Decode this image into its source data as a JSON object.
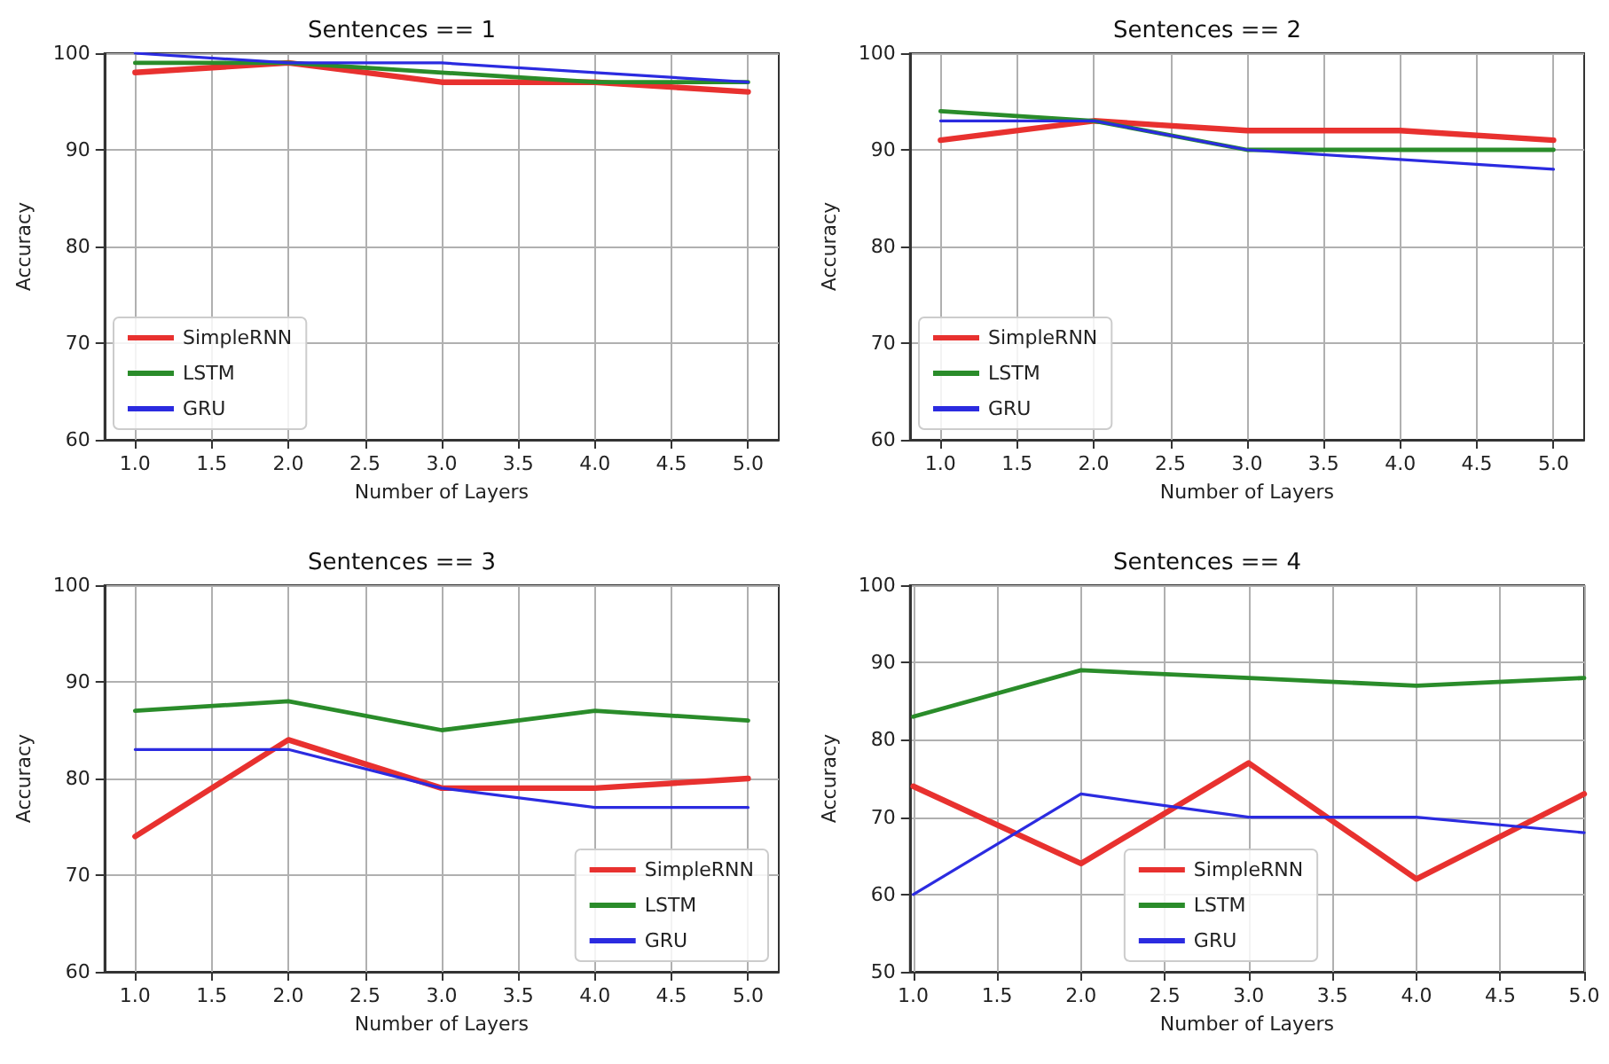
{
  "chart_data": [
    {
      "type": "line",
      "title": "Sentences == 1",
      "xlabel": "Number of Layers",
      "ylabel": "Accuracy",
      "x": [
        1,
        2,
        3,
        4,
        5
      ],
      "series": [
        {
          "name": "SimpleRNN",
          "color": "#e8312f",
          "values": [
            98,
            99,
            97,
            97,
            96
          ]
        },
        {
          "name": "LSTM",
          "color": "#2a8c2a",
          "values": [
            99,
            99,
            98,
            97,
            97
          ]
        },
        {
          "name": "GRU",
          "color": "#2b2be0",
          "values": [
            100,
            99,
            99,
            98,
            97
          ]
        }
      ],
      "xlim": [
        0.8,
        5.2
      ],
      "xticks": [
        {
          "value": 1,
          "label": "1.0"
        },
        {
          "value": 1.5,
          "label": "1.5"
        },
        {
          "value": 2,
          "label": "2.0"
        },
        {
          "value": 2.5,
          "label": "2.5"
        },
        {
          "value": 3,
          "label": "3.0"
        },
        {
          "value": 3.5,
          "label": "3.5"
        },
        {
          "value": 4,
          "label": "4.0"
        },
        {
          "value": 4.5,
          "label": "4.5"
        },
        {
          "value": 5,
          "label": "5.0"
        }
      ],
      "ylim": [
        60,
        100
      ],
      "yticks": [
        60,
        70,
        80,
        90,
        100
      ],
      "grid": true,
      "legend": "bottom left",
      "marker": "none",
      "line_style": "solid"
    },
    {
      "type": "line",
      "title": "Sentences == 2",
      "xlabel": "Number of Layers",
      "ylabel": "Accuracy",
      "x": [
        1,
        2,
        3,
        4,
        5
      ],
      "series": [
        {
          "name": "SimpleRNN",
          "color": "#e8312f",
          "values": [
            91,
            93,
            92,
            92,
            91
          ]
        },
        {
          "name": "LSTM",
          "color": "#2a8c2a",
          "values": [
            94,
            93,
            90,
            90,
            90
          ]
        },
        {
          "name": "GRU",
          "color": "#2b2be0",
          "values": [
            93,
            93,
            90,
            89,
            88
          ]
        }
      ],
      "xlim": [
        0.8,
        5.2
      ],
      "xticks": [
        {
          "value": 1,
          "label": "1.0"
        },
        {
          "value": 1.5,
          "label": "1.5"
        },
        {
          "value": 2,
          "label": "2.0"
        },
        {
          "value": 2.5,
          "label": "2.5"
        },
        {
          "value": 3,
          "label": "3.0"
        },
        {
          "value": 3.5,
          "label": "3.5"
        },
        {
          "value": 4,
          "label": "4.0"
        },
        {
          "value": 4.5,
          "label": "4.5"
        },
        {
          "value": 5,
          "label": "5.0"
        }
      ],
      "ylim": [
        60,
        100
      ],
      "yticks": [
        60,
        70,
        80,
        90,
        100
      ],
      "grid": true,
      "legend": "bottom left",
      "marker": "none",
      "line_style": "solid"
    },
    {
      "type": "line",
      "title": "Sentences == 3",
      "xlabel": "Number of Layers",
      "ylabel": "Accuracy",
      "x": [
        1,
        2,
        3,
        4,
        5
      ],
      "series": [
        {
          "name": "SimpleRNN",
          "color": "#e8312f",
          "values": [
            74,
            84,
            79,
            79,
            80
          ]
        },
        {
          "name": "LSTM",
          "color": "#2a8c2a",
          "values": [
            87,
            88,
            85,
            87,
            86
          ]
        },
        {
          "name": "GRU",
          "color": "#2b2be0",
          "values": [
            83,
            83,
            79,
            77,
            77
          ]
        }
      ],
      "xlim": [
        0.8,
        5.2
      ],
      "xticks": [
        {
          "value": 1,
          "label": "1.0"
        },
        {
          "value": 1.5,
          "label": "1.5"
        },
        {
          "value": 2,
          "label": "2.0"
        },
        {
          "value": 2.5,
          "label": "2.5"
        },
        {
          "value": 3,
          "label": "3.0"
        },
        {
          "value": 3.5,
          "label": "3.5"
        },
        {
          "value": 4,
          "label": "4.0"
        },
        {
          "value": 4.5,
          "label": "4.5"
        },
        {
          "value": 5,
          "label": "5.0"
        }
      ],
      "ylim": [
        60,
        100
      ],
      "yticks": [
        60,
        70,
        80,
        90,
        100
      ],
      "grid": true,
      "legend": "bottom right",
      "marker": "none",
      "line_style": "solid"
    },
    {
      "type": "line",
      "title": "Sentences == 4",
      "xlabel": "Number of Layers",
      "ylabel": "Accuracy",
      "x": [
        1,
        2,
        3,
        4,
        5
      ],
      "series": [
        {
          "name": "SimpleRNN",
          "color": "#e8312f",
          "values": [
            74,
            64,
            77,
            62,
            73
          ]
        },
        {
          "name": "LSTM",
          "color": "#2a8c2a",
          "values": [
            83,
            89,
            88,
            87,
            88
          ]
        },
        {
          "name": "GRU",
          "color": "#2b2be0",
          "values": [
            60,
            73,
            70,
            70,
            68
          ]
        }
      ],
      "xlim": [
        0.98,
        5.0
      ],
      "xticks": [
        {
          "value": 1,
          "label": "1.0"
        },
        {
          "value": 1.5,
          "label": "1.5"
        },
        {
          "value": 2,
          "label": "2.0"
        },
        {
          "value": 2.5,
          "label": "2.5"
        },
        {
          "value": 3,
          "label": "3.0"
        },
        {
          "value": 3.5,
          "label": "3.5"
        },
        {
          "value": 4,
          "label": "4.0"
        },
        {
          "value": 4.5,
          "label": "4.5"
        },
        {
          "value": 5,
          "label": "5.0"
        }
      ],
      "ylim": [
        50,
        100
      ],
      "yticks": [
        50,
        60,
        70,
        80,
        90,
        100
      ],
      "grid": true,
      "legend": "bottom",
      "marker": "none",
      "line_style": "solid"
    }
  ]
}
